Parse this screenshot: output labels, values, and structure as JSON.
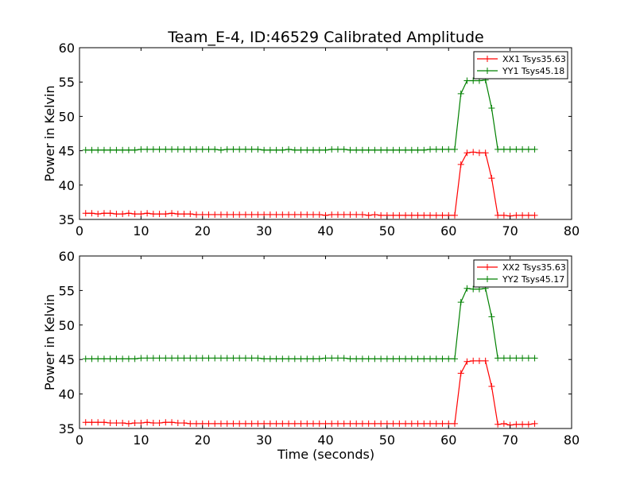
{
  "figure": {
    "title": "Team_E-4, ID:46529 Calibrated Amplitude",
    "xlabel": "Time (seconds)"
  },
  "colors": {
    "xx": "#ff0000",
    "yy": "#008000",
    "axis": "#000000",
    "background": "#ffffff"
  },
  "chart_data": [
    {
      "type": "line",
      "title": "Team_E-4, ID:46529 Calibrated Amplitude",
      "xlabel": "",
      "ylabel": "Power in Kelvin",
      "xlim": [
        0,
        80
      ],
      "ylim": [
        35,
        60
      ],
      "xticks": [
        "0",
        "10",
        "20",
        "30",
        "40",
        "50",
        "60",
        "70",
        "80"
      ],
      "yticks": [
        "35",
        "40",
        "45",
        "50",
        "55",
        "60"
      ],
      "grid": false,
      "legend": "top-right",
      "marker": "+",
      "x": [
        1,
        2,
        3,
        4,
        5,
        6,
        7,
        8,
        9,
        10,
        11,
        12,
        13,
        14,
        15,
        16,
        17,
        18,
        19,
        20,
        21,
        22,
        23,
        24,
        25,
        26,
        27,
        28,
        29,
        30,
        31,
        32,
        33,
        34,
        35,
        36,
        37,
        38,
        39,
        40,
        41,
        42,
        43,
        44,
        45,
        46,
        47,
        48,
        49,
        50,
        51,
        52,
        53,
        54,
        55,
        56,
        57,
        58,
        59,
        60,
        61,
        62,
        63,
        64,
        65,
        66,
        67,
        68,
        69,
        70,
        71,
        72,
        73,
        74
      ],
      "series": [
        {
          "name": "XX1 Tsys35.63",
          "color": "#ff0000",
          "values": [
            35.9,
            35.9,
            35.8,
            35.9,
            35.9,
            35.8,
            35.8,
            35.9,
            35.8,
            35.8,
            35.9,
            35.8,
            35.8,
            35.8,
            35.9,
            35.8,
            35.8,
            35.8,
            35.7,
            35.7,
            35.7,
            35.7,
            35.7,
            35.7,
            35.7,
            35.7,
            35.7,
            35.7,
            35.7,
            35.7,
            35.7,
            35.7,
            35.7,
            35.7,
            35.7,
            35.7,
            35.7,
            35.7,
            35.7,
            35.6,
            35.7,
            35.7,
            35.7,
            35.7,
            35.7,
            35.7,
            35.6,
            35.7,
            35.6,
            35.6,
            35.6,
            35.6,
            35.6,
            35.6,
            35.6,
            35.6,
            35.6,
            35.6,
            35.6,
            35.6,
            35.6,
            43.0,
            44.7,
            44.8,
            44.7,
            44.7,
            41.0,
            35.6,
            35.6,
            35.5,
            35.6,
            35.6,
            35.6,
            35.6
          ]
        },
        {
          "name": "YY1 Tsys45.18",
          "color": "#008000",
          "values": [
            45.1,
            45.1,
            45.1,
            45.1,
            45.1,
            45.1,
            45.1,
            45.1,
            45.1,
            45.2,
            45.2,
            45.2,
            45.2,
            45.2,
            45.2,
            45.2,
            45.2,
            45.2,
            45.2,
            45.2,
            45.2,
            45.2,
            45.1,
            45.2,
            45.2,
            45.2,
            45.2,
            45.2,
            45.2,
            45.1,
            45.1,
            45.1,
            45.1,
            45.2,
            45.1,
            45.1,
            45.1,
            45.1,
            45.1,
            45.1,
            45.2,
            45.2,
            45.2,
            45.1,
            45.1,
            45.1,
            45.1,
            45.1,
            45.1,
            45.1,
            45.1,
            45.1,
            45.1,
            45.1,
            45.1,
            45.1,
            45.2,
            45.2,
            45.2,
            45.2,
            45.2,
            53.3,
            55.2,
            55.2,
            55.2,
            55.3,
            51.2,
            45.2,
            45.2,
            45.2,
            45.2,
            45.2,
            45.2,
            45.2
          ]
        }
      ]
    },
    {
      "type": "line",
      "title": "",
      "xlabel": "Time (seconds)",
      "ylabel": "Power in Kelvin",
      "xlim": [
        0,
        80
      ],
      "ylim": [
        35,
        60
      ],
      "xticks": [
        "0",
        "10",
        "20",
        "30",
        "40",
        "50",
        "60",
        "70",
        "80"
      ],
      "yticks": [
        "35",
        "40",
        "45",
        "50",
        "55",
        "60"
      ],
      "grid": false,
      "legend": "top-right",
      "marker": "+",
      "x": [
        1,
        2,
        3,
        4,
        5,
        6,
        7,
        8,
        9,
        10,
        11,
        12,
        13,
        14,
        15,
        16,
        17,
        18,
        19,
        20,
        21,
        22,
        23,
        24,
        25,
        26,
        27,
        28,
        29,
        30,
        31,
        32,
        33,
        34,
        35,
        36,
        37,
        38,
        39,
        40,
        41,
        42,
        43,
        44,
        45,
        46,
        47,
        48,
        49,
        50,
        51,
        52,
        53,
        54,
        55,
        56,
        57,
        58,
        59,
        60,
        61,
        62,
        63,
        64,
        65,
        66,
        67,
        68,
        69,
        70,
        71,
        72,
        73,
        74
      ],
      "series": [
        {
          "name": "XX2 Tsys35.63",
          "color": "#ff0000",
          "values": [
            35.9,
            35.9,
            35.9,
            35.9,
            35.8,
            35.8,
            35.8,
            35.7,
            35.8,
            35.8,
            35.9,
            35.8,
            35.8,
            35.9,
            35.9,
            35.8,
            35.8,
            35.7,
            35.7,
            35.7,
            35.7,
            35.7,
            35.7,
            35.7,
            35.7,
            35.7,
            35.7,
            35.7,
            35.7,
            35.7,
            35.7,
            35.7,
            35.7,
            35.7,
            35.7,
            35.7,
            35.7,
            35.7,
            35.7,
            35.7,
            35.7,
            35.7,
            35.7,
            35.7,
            35.7,
            35.7,
            35.7,
            35.7,
            35.7,
            35.7,
            35.7,
            35.7,
            35.7,
            35.7,
            35.7,
            35.7,
            35.7,
            35.7,
            35.7,
            35.7,
            35.7,
            43.0,
            44.7,
            44.8,
            44.8,
            44.8,
            41.1,
            35.6,
            35.7,
            35.5,
            35.6,
            35.6,
            35.6,
            35.7
          ]
        },
        {
          "name": "YY2 Tsys45.17",
          "color": "#008000",
          "values": [
            45.1,
            45.1,
            45.1,
            45.1,
            45.1,
            45.1,
            45.1,
            45.1,
            45.1,
            45.2,
            45.2,
            45.2,
            45.2,
            45.2,
            45.2,
            45.2,
            45.2,
            45.2,
            45.2,
            45.2,
            45.2,
            45.2,
            45.2,
            45.2,
            45.2,
            45.2,
            45.2,
            45.2,
            45.2,
            45.1,
            45.1,
            45.1,
            45.1,
            45.1,
            45.1,
            45.1,
            45.1,
            45.1,
            45.1,
            45.2,
            45.2,
            45.2,
            45.2,
            45.1,
            45.1,
            45.1,
            45.1,
            45.1,
            45.1,
            45.1,
            45.1,
            45.1,
            45.1,
            45.1,
            45.1,
            45.1,
            45.1,
            45.1,
            45.1,
            45.1,
            45.1,
            53.3,
            55.3,
            55.2,
            55.2,
            55.3,
            51.2,
            45.2,
            45.2,
            45.2,
            45.2,
            45.2,
            45.2,
            45.2
          ]
        }
      ]
    }
  ]
}
